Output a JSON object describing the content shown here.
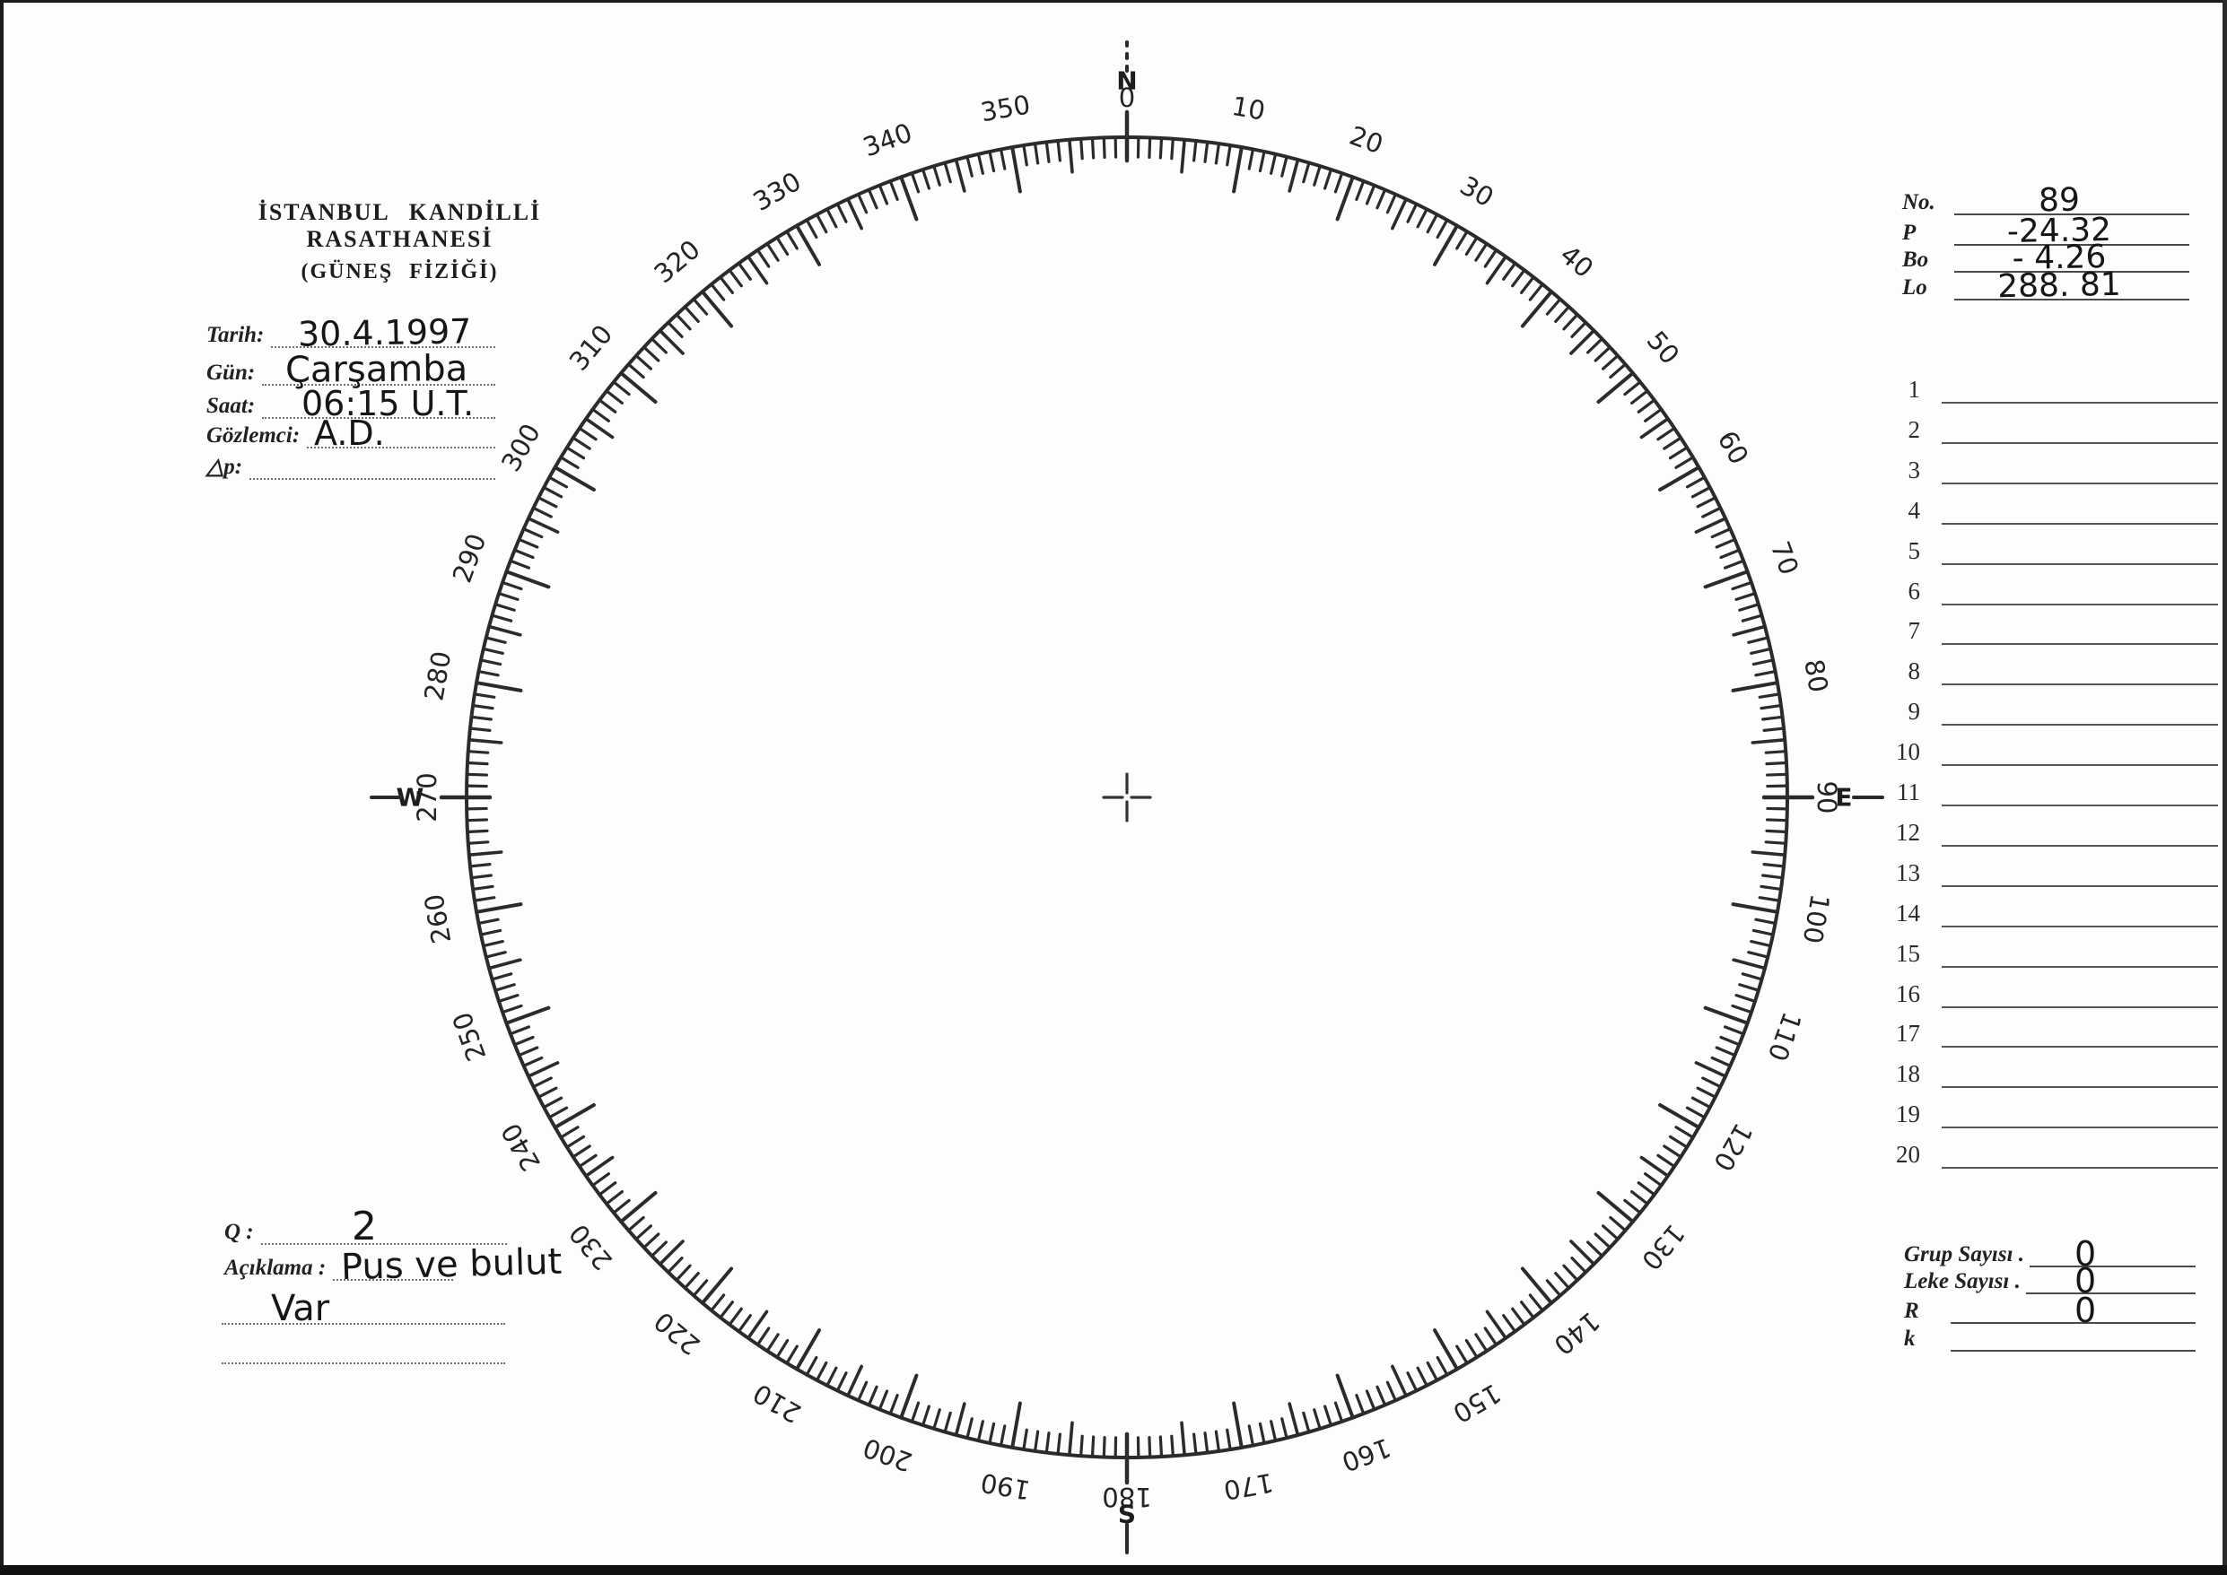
{
  "header": {
    "title_line1": "İSTANBUL KANDİLLİ RASATHANESİ",
    "title_line2": "(GÜNEŞ FİZİĞİ)"
  },
  "observation_fields": [
    {
      "label": "Tarih:",
      "value": "30.4.1997"
    },
    {
      "label": "Gün:",
      "value": "Çarşamba"
    },
    {
      "label": "Saat:",
      "value": "06:15 U.T."
    },
    {
      "label": "Gözlemci:",
      "value": "A.D."
    },
    {
      "label": "△p:",
      "value": ""
    }
  ],
  "quality": {
    "label": "Q :",
    "value": "2"
  },
  "remarks": {
    "label": "Açıklama :",
    "line1": "Pus ve bulut",
    "line2": "Var"
  },
  "ephemeris": [
    {
      "label": "No.",
      "value": "89"
    },
    {
      "label": "P",
      "value": "-24.32"
    },
    {
      "label": "Bo",
      "value": "- 4.26"
    },
    {
      "label": "Lo",
      "value": "288. 81"
    }
  ],
  "numbered_rows": [
    "1",
    "2",
    "3",
    "4",
    "5",
    "6",
    "7",
    "8",
    "9",
    "10",
    "11",
    "12",
    "13",
    "14",
    "15",
    "16",
    "17",
    "18",
    "19",
    "20"
  ],
  "summary": [
    {
      "label": "Grup Sayısı .",
      "value": "0"
    },
    {
      "label": "Leke Sayısı .",
      "value": "0"
    },
    {
      "label": "R",
      "value": "0"
    },
    {
      "label": "k",
      "value": ""
    }
  ],
  "dial": {
    "degree_labels": [
      "10",
      "20",
      "30",
      "40",
      "50",
      "60",
      "70",
      "80",
      "100",
      "110",
      "120",
      "130",
      "140",
      "150",
      "160",
      "170",
      "190",
      "200",
      "210",
      "220",
      "230",
      "240",
      "250",
      "260",
      "280",
      "290",
      "300",
      "310",
      "320",
      "330",
      "340",
      "350"
    ],
    "cardinals": [
      {
        "angle": 0,
        "degree": "0",
        "letter": "N"
      },
      {
        "angle": 90,
        "degree": "90",
        "letter": "E"
      },
      {
        "angle": 180,
        "degree": "180",
        "letter": "S"
      },
      {
        "angle": 270,
        "degree": "270",
        "letter": "W"
      }
    ]
  },
  "colors": {
    "ink": "#1f1f1f",
    "tick": "#2b2b2b",
    "handwriting": "#161616"
  }
}
